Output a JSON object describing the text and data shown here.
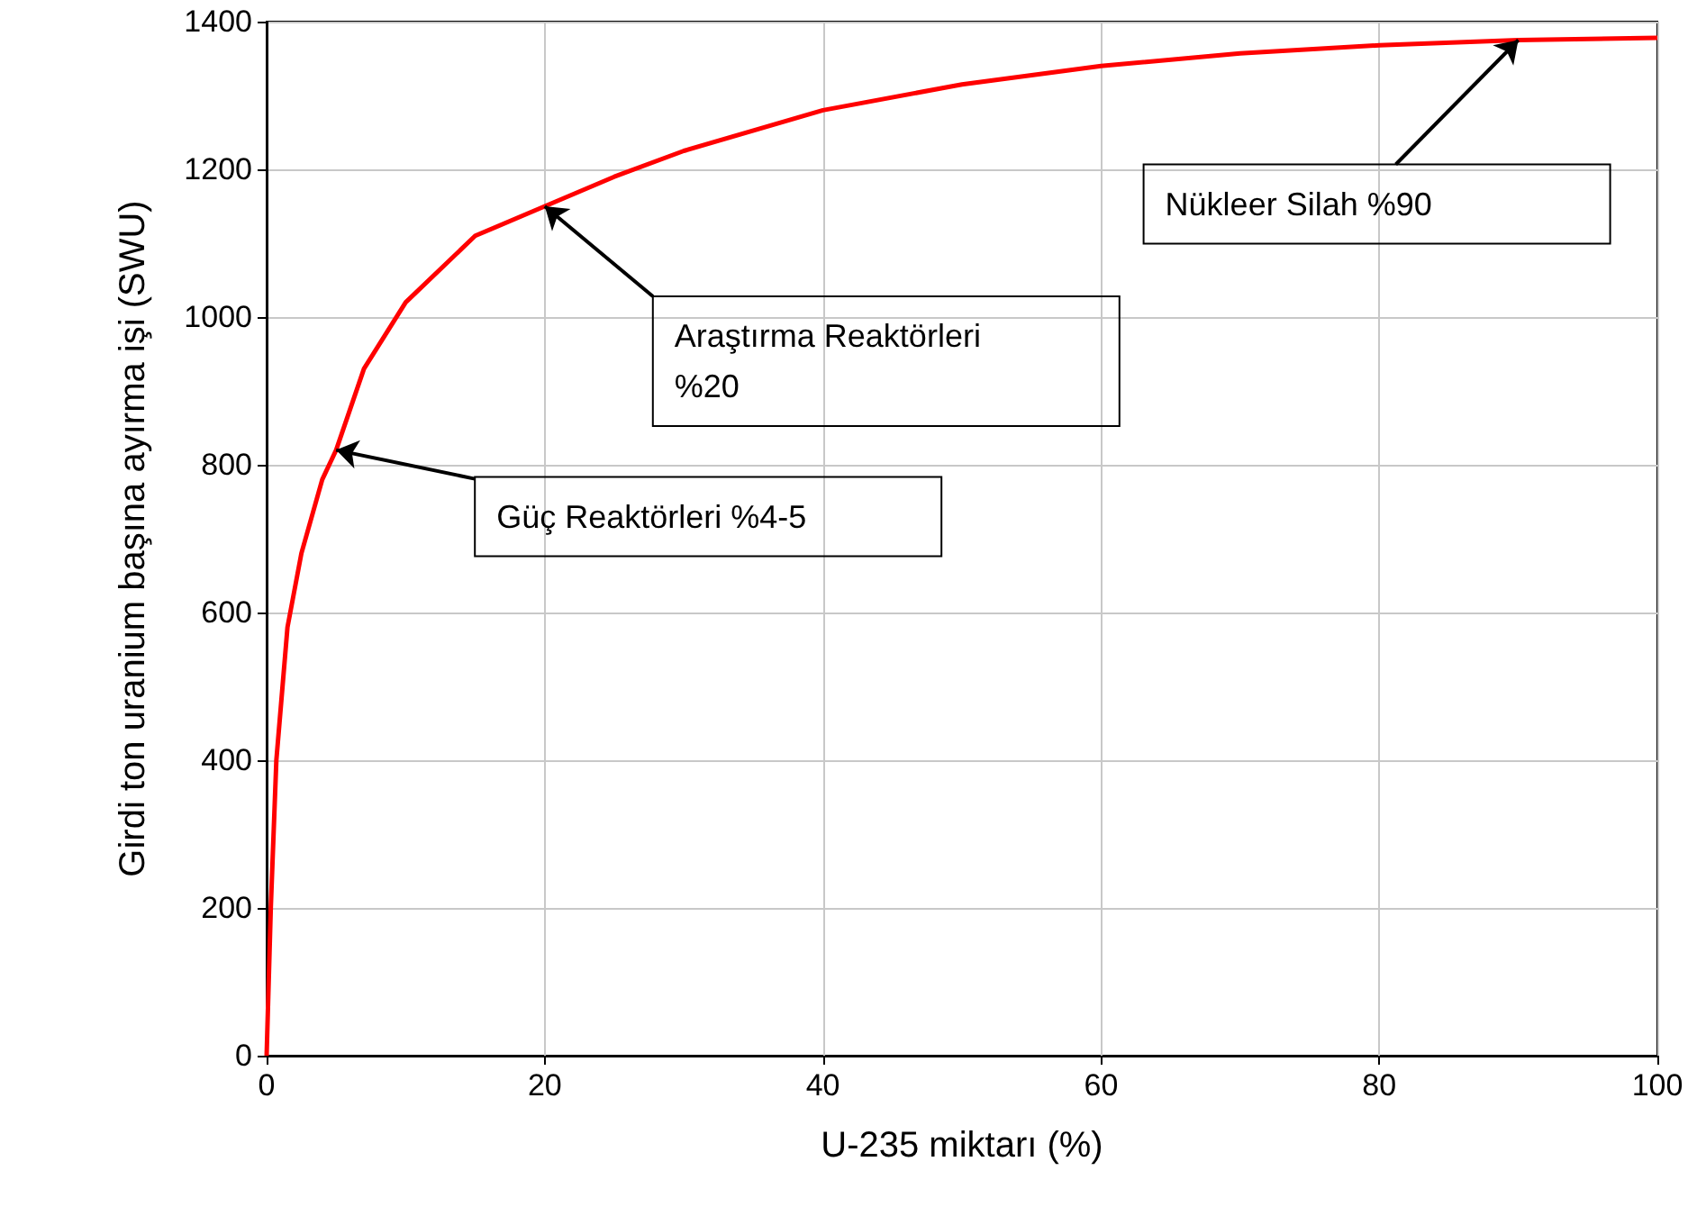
{
  "chart_data": {
    "type": "line",
    "xlabel": "U-235 miktarı (%)",
    "ylabel": "Girdi ton uranium başına ayırma işi (SWU)",
    "series": [
      {
        "color": "#ff0000",
        "x": [
          0,
          0.3,
          0.7,
          1.5,
          2.5,
          4,
          5,
          7,
          10,
          15,
          20,
          25,
          30,
          40,
          50,
          60,
          70,
          80,
          90,
          100
        ],
        "values": [
          0,
          200,
          400,
          580,
          680,
          780,
          820,
          930,
          1020,
          1110,
          1150,
          1190,
          1225,
          1280,
          1315,
          1340,
          1357,
          1368,
          1375,
          1378
        ]
      }
    ],
    "xlim": [
      0,
      100
    ],
    "xticks": [
      0,
      20,
      40,
      60,
      80,
      100
    ],
    "ylim": [
      0,
      1400
    ],
    "yticks": [
      0,
      200,
      400,
      600,
      800,
      1000,
      1200,
      1400
    ],
    "grid": true,
    "marker": "none",
    "line_style": "solid",
    "annotations": [
      {
        "text": "Güç Reaktörleri %4-5",
        "x": 5,
        "y": 820
      },
      {
        "text": "Araştırma Reaktörleri %20",
        "x": 20,
        "y": 1150
      },
      {
        "text": "Nükleer Silah %90",
        "x": 90,
        "y": 1375
      }
    ]
  }
}
